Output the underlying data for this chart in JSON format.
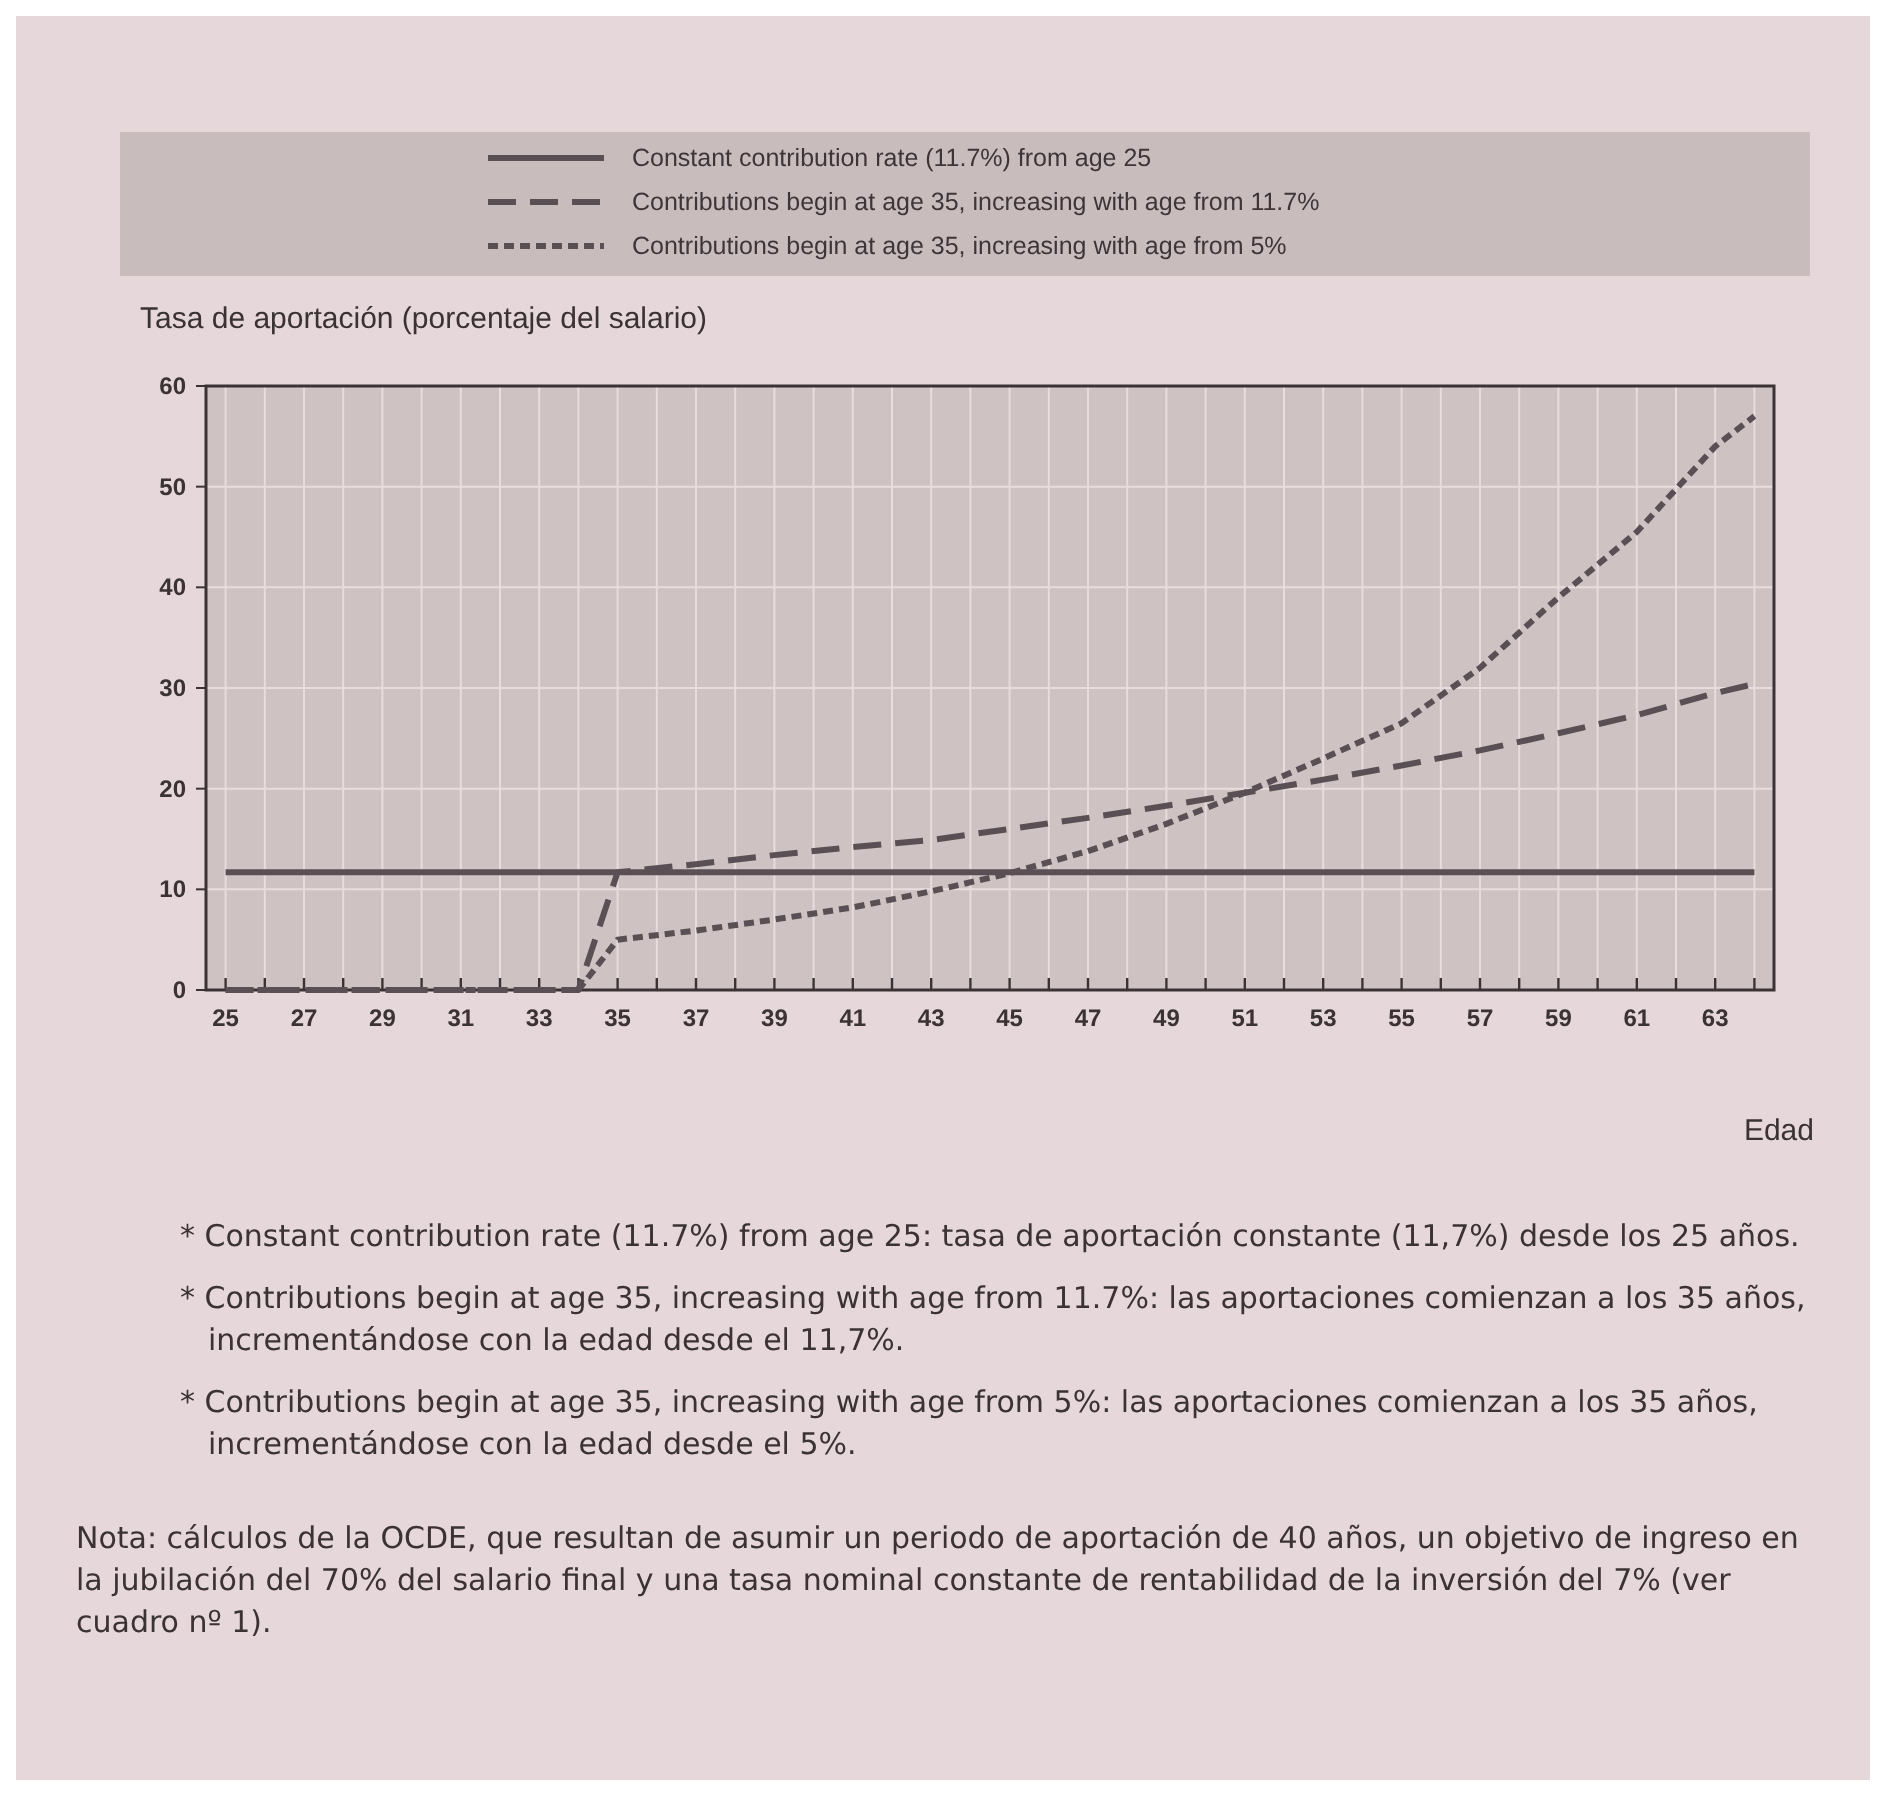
{
  "chart_data": {
    "type": "line",
    "ylabel": "Tasa de aportación (porcentaje del salario)",
    "xlabel": "Edad",
    "xlim": [
      24.5,
      64.5
    ],
    "xticks": [
      25,
      {
        "value": 26,
        "label": null
      },
      27,
      {
        "value": 28,
        "label": null
      },
      29,
      {
        "value": 30,
        "label": null
      },
      31,
      {
        "value": 32,
        "label": null
      },
      33,
      {
        "value": 34,
        "label": null
      },
      35,
      {
        "value": 36,
        "label": null
      },
      37,
      {
        "value": 38,
        "label": null
      },
      39,
      {
        "value": 40,
        "label": null
      },
      41,
      {
        "value": 42,
        "label": null
      },
      43,
      {
        "value": 44,
        "label": null
      },
      45,
      {
        "value": 46,
        "label": null
      },
      47,
      {
        "value": 48,
        "label": null
      },
      49,
      {
        "value": 50,
        "label": null
      },
      51,
      {
        "value": 52,
        "label": null
      },
      53,
      {
        "value": 54,
        "label": null
      },
      55,
      {
        "value": 56,
        "label": null
      },
      57,
      {
        "value": 58,
        "label": null
      },
      59,
      {
        "value": 60,
        "label": null
      },
      61,
      {
        "value": 62,
        "label": null
      },
      63,
      {
        "value": 64,
        "label": null
      }
    ],
    "ylim": [
      0,
      60
    ],
    "yticks": [
      0,
      10,
      20,
      30,
      40,
      50,
      60
    ],
    "grid": true,
    "legend": "top",
    "series": [
      {
        "name": "Constant contribution rate (11.7%) from age 25",
        "color": "#5a4f54",
        "line_style": "solid",
        "x": [
          25,
          64
        ],
        "values": [
          11.7,
          11.7
        ]
      },
      {
        "name": "Contributions begin at age 35, increasing with age from 11.7%",
        "color": "#5a4f54",
        "line_style": "dashed",
        "x": [
          25,
          34,
          35,
          37,
          39,
          41,
          43,
          45,
          47,
          49,
          51,
          53,
          55,
          57,
          59,
          61,
          63,
          64
        ],
        "values": [
          0,
          0,
          11.7,
          12.5,
          13.4,
          14.2,
          14.9,
          16,
          17.1,
          18.3,
          19.6,
          20.9,
          22.3,
          23.8,
          25.5,
          27.3,
          29.5,
          30.4
        ]
      },
      {
        "name": "Contributions begin at age 35, increasing with age from 5%",
        "color": "#5a4f54",
        "line_style": "dotted",
        "x": [
          25,
          34,
          35,
          37,
          39,
          41,
          43,
          45,
          47,
          49,
          51,
          53,
          55,
          57,
          59,
          61,
          63,
          64
        ],
        "values": [
          0,
          0,
          5,
          5.9,
          7,
          8.2,
          9.8,
          11.6,
          13.8,
          16.5,
          19.6,
          23,
          26.5,
          32,
          39,
          45.5,
          54,
          57
        ]
      }
    ],
    "annotations": [
      "* Constant contribution rate (11.7%) from age 25: tasa de aportación constante (11,7%) desde los 25 años.",
      "* Contributions begin at age 35, increasing with age from 11.7%: las aportaciones comienzan a los 35 años, incrementándose con la edad desde el 11,7%.",
      "* Contributions begin at age 35, increasing with age from 5%: las aportaciones comienzan a los 35 años, incrementándose con la edad desde el 5%.",
      "Nota: cálculos de la OCDE, que resultan de asumir un periodo de aportación de 40 años, un objetivo de ingreso en la jubilación del 70% del salario final y una tasa nominal constante de rentabilidad de la inversión del 7% (ver cuadro nº 1)."
    ]
  }
}
